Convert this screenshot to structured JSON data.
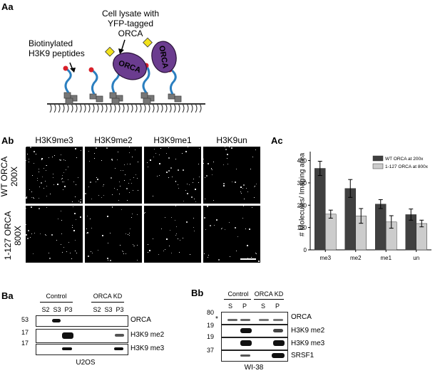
{
  "panel_Aa": {
    "label": "Aa",
    "lysate_label": [
      "Cell lysate with",
      "YFP-tagged",
      "ORCA"
    ],
    "peptide_label": [
      "Biotinylated",
      "H3K9 peptides"
    ],
    "orca_text": "ORCA"
  },
  "panel_Ab": {
    "label": "Ab",
    "columns": [
      "H3K9me3",
      "H3K9me2",
      "H3K9me1",
      "H3K9un"
    ],
    "rows": [
      {
        "line1": "WT ORCA",
        "line2": "200X"
      },
      {
        "line1": "1-127 ORCA",
        "line2": "800X"
      }
    ]
  },
  "panel_Ac": {
    "label": "Ac"
  },
  "chart_data": {
    "type": "bar",
    "categories": [
      "me3",
      "me2",
      "me1",
      "un"
    ],
    "series": [
      {
        "name": "WT ORCA at 200x",
        "values": [
          365,
          275,
          205,
          158
        ],
        "errors": [
          32,
          40,
          20,
          25
        ],
        "color": "#404040"
      },
      {
        "name": "1-127 ORCA at 800x",
        "values": [
          160,
          152,
          125,
          118
        ],
        "errors": [
          18,
          33,
          28,
          15
        ],
        "color": "#cccccc"
      }
    ],
    "ylabel": "# Molecules/ Imaging area",
    "yticks": [
      0,
      100,
      200,
      300,
      400
    ],
    "ylim": [
      0,
      440
    ],
    "legend": "top-right"
  },
  "panel_Ba": {
    "label": "Ba",
    "group1": "Control",
    "group2": "ORCA KD",
    "lanes": [
      "S2",
      "S3",
      "P3",
      "S2",
      "S3",
      "P3"
    ],
    "mw": [
      "53",
      "17",
      "17"
    ],
    "proteins": [
      "ORCA",
      "H3K9 me2",
      "H3K9 me3"
    ],
    "cell_line": "U2OS"
  },
  "panel_Bb": {
    "label": "Bb",
    "group1": "Control",
    "group2": "ORCA KD",
    "lanes": [
      "S",
      "P",
      "S",
      "P"
    ],
    "mw": [
      "80",
      "19",
      "19",
      "37"
    ],
    "asterisk": "*",
    "proteins": [
      "ORCA",
      "H3K9 me2",
      "H3K9 me3",
      "SRSF1"
    ],
    "cell_line": "WI-38"
  }
}
